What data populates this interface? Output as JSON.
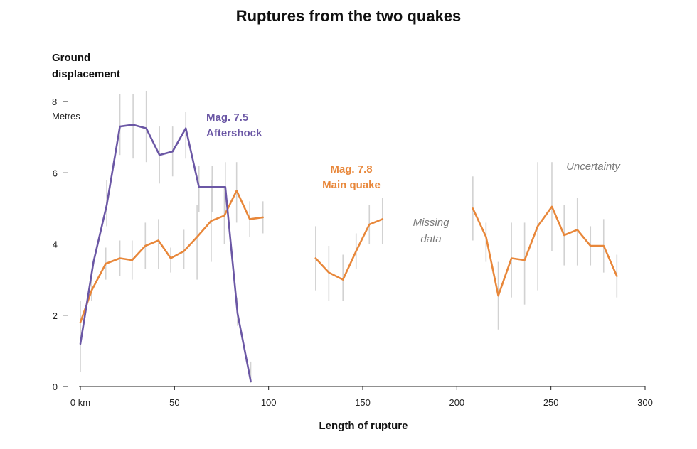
{
  "chart_data": {
    "type": "line",
    "title": "Ruptures from the two quakes",
    "ylabel_line1": "Ground",
    "ylabel_line2": "displacement",
    "y_unit": "Metres",
    "xlabel": "Length of rupture",
    "xlim": [
      0,
      300
    ],
    "ylim": [
      0,
      8
    ],
    "x_ticks": [
      {
        "value": 0,
        "label": "0 km"
      },
      {
        "value": 50,
        "label": "50"
      },
      {
        "value": 100,
        "label": "100"
      },
      {
        "value": 150,
        "label": "150"
      },
      {
        "value": 200,
        "label": "200"
      },
      {
        "value": 250,
        "label": "250"
      },
      {
        "value": 300,
        "label": "300"
      }
    ],
    "y_ticks": [
      {
        "value": 0,
        "label": "0"
      },
      {
        "value": 2,
        "label": "2"
      },
      {
        "value": 4,
        "label": "4"
      },
      {
        "value": 6,
        "label": "6"
      },
      {
        "value": 8,
        "label": "8"
      }
    ],
    "series": [
      {
        "name": "Mag. 7.5 Aftershock",
        "label_line1": "Mag. 7.5",
        "label_line2": "Aftershock",
        "color": "#6b57a5",
        "points": [
          {
            "x": 0,
            "y": 1.2
          },
          {
            "x": 7,
            "y": 3.5
          },
          {
            "x": 14,
            "y": 5.1
          },
          {
            "x": 21,
            "y": 7.3
          },
          {
            "x": 28,
            "y": 7.35
          },
          {
            "x": 35,
            "y": 7.25
          },
          {
            "x": 42,
            "y": 6.5
          },
          {
            "x": 49,
            "y": 6.6
          },
          {
            "x": 56,
            "y": 7.25
          },
          {
            "x": 63,
            "y": 5.6
          },
          {
            "x": 70,
            "y": 5.6
          },
          {
            "x": 77,
            "y": 5.6
          },
          {
            "x": 83.5,
            "y": 2.05
          },
          {
            "x": 90.5,
            "y": 0.15
          }
        ]
      },
      {
        "name": "Mag. 7.8 Main quake",
        "label_line1": "Mag. 7.8",
        "label_line2": "Main quake",
        "color": "#e8873a",
        "segments": [
          [
            {
              "x": 0,
              "y": 1.8,
              "lo": 1.4,
              "hi": 2.4
            },
            {
              "x": 6,
              "y": 2.7,
              "lo": 2.4,
              "hi": 3.0
            },
            {
              "x": 13.5,
              "y": 3.45,
              "lo": 3.0,
              "hi": 3.9
            },
            {
              "x": 21,
              "y": 3.6,
              "lo": 3.1,
              "hi": 4.1
            },
            {
              "x": 27.5,
              "y": 3.55,
              "lo": 3.0,
              "hi": 4.1
            },
            {
              "x": 34.5,
              "y": 3.95,
              "lo": 3.3,
              "hi": 4.6
            },
            {
              "x": 41.5,
              "y": 4.1,
              "lo": 3.3,
              "hi": 4.7
            },
            {
              "x": 48,
              "y": 3.6,
              "lo": 3.2,
              "hi": 3.9
            },
            {
              "x": 55,
              "y": 3.8,
              "lo": 3.3,
              "hi": 4.4
            },
            {
              "x": 62,
              "y": 4.2,
              "lo": 3.0,
              "hi": 5.1
            },
            {
              "x": 69.5,
              "y": 4.65,
              "lo": 3.5,
              "hi": 5.8
            },
            {
              "x": 76.5,
              "y": 4.8,
              "lo": 4.0,
              "hi": 5.6
            },
            {
              "x": 83,
              "y": 5.5,
              "lo": 4.6,
              "hi": 6.3
            },
            {
              "x": 90,
              "y": 4.7,
              "lo": 4.2,
              "hi": 5.2
            },
            {
              "x": 97,
              "y": 4.75,
              "lo": 4.3,
              "hi": 5.2
            }
          ],
          [
            {
              "x": 125,
              "y": 3.6,
              "lo": 2.7,
              "hi": 4.5
            },
            {
              "x": 132,
              "y": 3.2,
              "lo": 2.4,
              "hi": 3.95
            },
            {
              "x": 139.5,
              "y": 3.0,
              "lo": 2.4,
              "hi": 3.7
            },
            {
              "x": 146.5,
              "y": 3.8,
              "lo": 3.3,
              "hi": 4.3
            },
            {
              "x": 153.5,
              "y": 4.55,
              "lo": 4.0,
              "hi": 5.1
            },
            {
              "x": 160.5,
              "y": 4.7,
              "lo": 4.0,
              "hi": 5.3
            }
          ],
          [
            {
              "x": 208.5,
              "y": 5.0,
              "lo": 4.1,
              "hi": 5.9
            },
            {
              "x": 215.5,
              "y": 4.2,
              "lo": 3.5,
              "hi": 4.6
            },
            {
              "x": 222,
              "y": 2.55,
              "lo": 1.6,
              "hi": 3.5
            },
            {
              "x": 229,
              "y": 3.6,
              "lo": 2.5,
              "hi": 4.6
            },
            {
              "x": 236,
              "y": 3.55,
              "lo": 2.3,
              "hi": 4.6
            },
            {
              "x": 243,
              "y": 4.5,
              "lo": 2.7,
              "hi": 6.3
            },
            {
              "x": 250.5,
              "y": 5.05,
              "lo": 3.8,
              "hi": 6.3
            },
            {
              "x": 257,
              "y": 4.25,
              "lo": 3.4,
              "hi": 5.1
            },
            {
              "x": 264,
              "y": 4.4,
              "lo": 3.4,
              "hi": 5.3
            },
            {
              "x": 271,
              "y": 3.95,
              "lo": 3.4,
              "hi": 4.5
            },
            {
              "x": 278,
              "y": 3.95,
              "lo": 3.2,
              "hi": 4.7
            },
            {
              "x": 285,
              "y": 3.1,
              "lo": 2.5,
              "hi": 3.7
            }
          ]
        ]
      }
    ],
    "aftershock_error_bars": [
      {
        "x": 0,
        "lo": 0.4,
        "hi": 2.0
      },
      {
        "x": 14,
        "lo": 4.5,
        "hi": 5.8
      },
      {
        "x": 21,
        "lo": 6.5,
        "hi": 8.2
      },
      {
        "x": 28,
        "lo": 6.4,
        "hi": 8.2
      },
      {
        "x": 35,
        "lo": 6.3,
        "hi": 8.3
      },
      {
        "x": 42,
        "lo": 5.7,
        "hi": 7.3
      },
      {
        "x": 49,
        "lo": 5.9,
        "hi": 7.3
      },
      {
        "x": 56,
        "lo": 6.4,
        "hi": 7.7
      },
      {
        "x": 63,
        "lo": 4.9,
        "hi": 6.2
      },
      {
        "x": 70,
        "lo": 4.9,
        "hi": 6.2
      },
      {
        "x": 77,
        "lo": 4.8,
        "hi": 6.3
      },
      {
        "x": 83.5,
        "lo": 1.7,
        "hi": 2.5
      },
      {
        "x": 90.5,
        "lo": 0.1,
        "hi": 0.7
      }
    ],
    "annotations": {
      "missing_line1": "Missing",
      "missing_line2": "data",
      "uncertainty": "Uncertainty"
    }
  }
}
